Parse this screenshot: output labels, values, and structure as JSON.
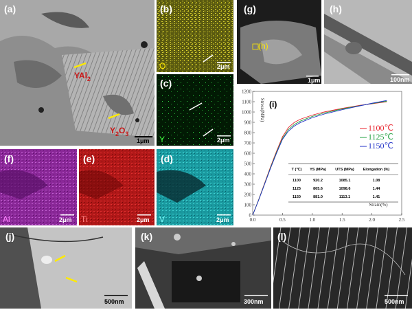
{
  "panels": {
    "a": {
      "label": "(a)",
      "phase1": [
        "YAl",
        "2"
      ],
      "phase2": [
        "Y",
        "2",
        "O",
        "3"
      ],
      "scale": "1μm"
    },
    "b": {
      "label": "(b)",
      "element": "O",
      "scale": "2μm"
    },
    "c": {
      "label": "(c)",
      "element": "Y",
      "scale": "2μm"
    },
    "f": {
      "label": "(f)",
      "element": "Al",
      "scale": "2μm"
    },
    "e": {
      "label": "(e)",
      "element": "Ti",
      "scale": "2μm"
    },
    "d": {
      "label": "(d)",
      "element": "V",
      "scale": "2μm"
    },
    "g": {
      "label": "(g)",
      "inset": "(h)",
      "scale": "1μm"
    },
    "h": {
      "label": "(h)",
      "scale": "100nm"
    },
    "j": {
      "label": "(j)",
      "scale": "500nm"
    },
    "k": {
      "label": "(k)",
      "scale": "300nm"
    },
    "l": {
      "label": "(l)",
      "scale": "500nm"
    }
  },
  "chart_data": {
    "type": "line",
    "label": "(i)",
    "xlabel": "Strain(%)",
    "ylabel": "Stress(MPa)",
    "x": [
      0,
      0.1,
      0.2,
      0.3,
      0.4,
      0.5,
      0.6,
      0.7,
      0.8,
      1.0,
      1.2,
      1.5,
      1.8,
      2.0,
      2.25
    ],
    "series": [
      {
        "name": "1100℃",
        "color": "#e8202a",
        "values": [
          0,
          150,
          310,
          470,
          620,
          760,
          850,
          900,
          930,
          970,
          1000,
          1035,
          1065,
          1080,
          1100
        ]
      },
      {
        "name": "1125℃",
        "color": "#22a040",
        "values": [
          0,
          148,
          305,
          462,
          610,
          745,
          830,
          880,
          912,
          957,
          990,
          1030,
          1062,
          1082,
          1105
        ]
      },
      {
        "name": "1150℃",
        "color": "#2030c8",
        "values": [
          0,
          145,
          300,
          455,
          600,
          735,
          815,
          865,
          898,
          945,
          980,
          1022,
          1060,
          1085,
          1112
        ]
      }
    ],
    "xlim": [
      0,
      2.5
    ],
    "xticks": [
      {
        "value": 0,
        "label": "0.0"
      },
      0.5,
      {
        "value": 1,
        "label": "1.0"
      },
      1.5,
      {
        "value": 2,
        "label": "2.0"
      },
      2.5
    ],
    "ylim": [
      0,
      1200
    ],
    "yticks": [
      0,
      100,
      200,
      300,
      400,
      500,
      600,
      700,
      800,
      900,
      1000,
      1100,
      1200
    ],
    "table": {
      "header": [
        "T (℃)",
        "YS (MPa)",
        "UTS (MPa)",
        "Elongation (%)"
      ],
      "rows": [
        [
          "1100",
          "920.2",
          "1085.1",
          "1.08"
        ],
        [
          "1125",
          "865.6",
          "1098.6",
          "1.44"
        ],
        [
          "1150",
          "881.0",
          "1113.1",
          "1.41"
        ]
      ]
    }
  }
}
